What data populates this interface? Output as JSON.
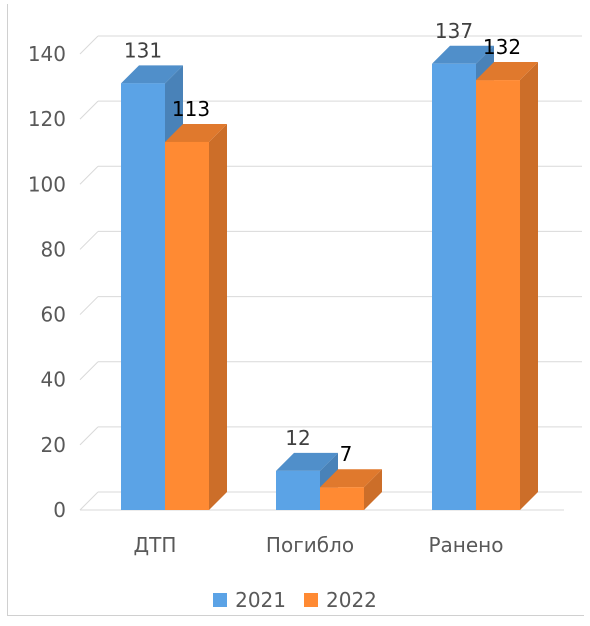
{
  "chart_data": {
    "type": "bar",
    "categories": [
      "ДТП",
      "Погибло",
      "Ранено"
    ],
    "series": [
      {
        "name": "2021",
        "values": [
          131,
          12,
          137
        ],
        "color": "#5ba3e6"
      },
      {
        "name": "2022",
        "values": [
          113,
          7,
          132
        ],
        "color": "#ff8a33"
      }
    ],
    "ylim": [
      0,
      140
    ],
    "yticks": [
      0,
      20,
      40,
      60,
      80,
      100,
      120,
      140
    ],
    "grid": true,
    "legend_position": "bottom",
    "style": "3d-clustered-column"
  }
}
